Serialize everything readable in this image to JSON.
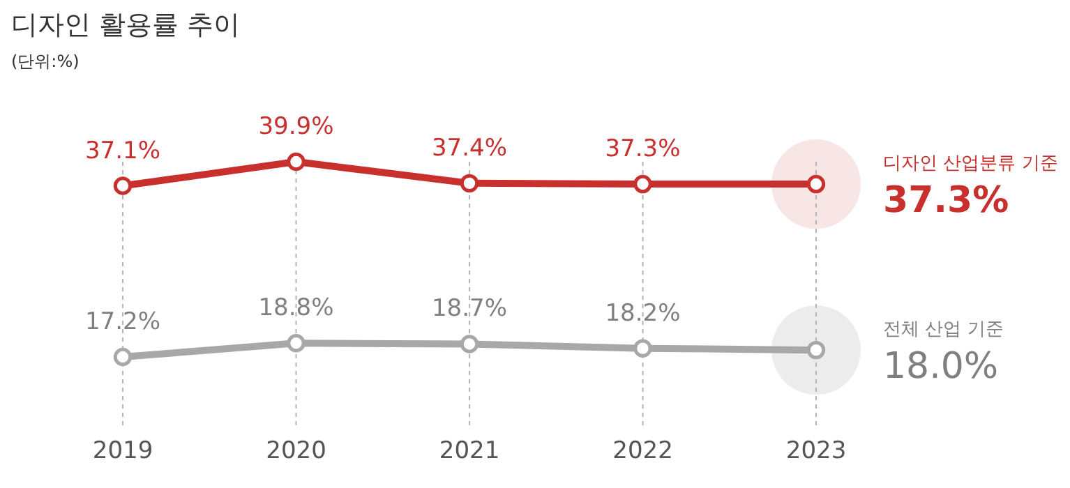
{
  "chart_data": {
    "type": "line",
    "title": "디자인 활용률 추이",
    "subtitle": "(단위:%)",
    "categories": [
      "2019",
      "2020",
      "2021",
      "2022",
      "2023"
    ],
    "series": [
      {
        "name": "디자인 산업분류 기준",
        "color": "#c8302e",
        "values": [
          37.1,
          39.9,
          37.4,
          37.3,
          37.3
        ],
        "value_labels": [
          "37.1%",
          "39.9%",
          "37.4%",
          "37.3%",
          "37.3%"
        ]
      },
      {
        "name": "전체 산업 기준",
        "color": "#a8a8a8",
        "values": [
          17.2,
          18.8,
          18.7,
          18.2,
          18.0
        ],
        "value_labels": [
          "17.2%",
          "18.8%",
          "18.7%",
          "18.2%",
          "18.0%"
        ]
      }
    ],
    "tick_labels": "x",
    "grid": "x",
    "legend": "right",
    "marker": "circle",
    "line_style": "solid"
  }
}
